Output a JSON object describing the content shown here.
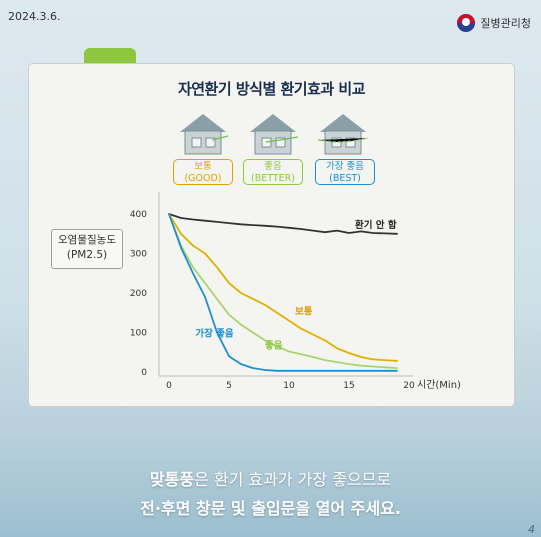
{
  "header": {
    "date": "2024.3.6.",
    "org": "질병관리청"
  },
  "card": {
    "title": "자연환기 방식별 환기효과 비교"
  },
  "badges": [
    {
      "line1": "보통",
      "line2": "(GOOD)",
      "color": "#e0a000"
    },
    {
      "line1": "좋음",
      "line2": "(BETTER)",
      "color": "#8dc63f"
    },
    {
      "line1": "가장 좋음",
      "line2": "(BEST)",
      "color": "#1e8fd0"
    }
  ],
  "pm_label": {
    "line1": "오염물질농도",
    "line2": "(PM2.5)"
  },
  "chart_data": {
    "type": "line",
    "xlabel": "시간(Min)",
    "ylabel": "",
    "xlim": [
      0,
      20
    ],
    "ylim": [
      0,
      400
    ],
    "xticks": [
      0,
      5,
      10,
      15,
      20
    ],
    "yticks": [
      0,
      100,
      200,
      300,
      400
    ],
    "grid": false,
    "series": [
      {
        "name": "환기 안 함",
        "color": "#333333",
        "x": [
          0,
          1,
          2,
          3,
          4,
          5,
          6,
          7,
          8,
          9,
          10,
          11,
          12,
          13,
          14,
          15,
          16,
          17,
          18,
          19
        ],
        "y": [
          400,
          390,
          386,
          383,
          380,
          377,
          374,
          372,
          370,
          368,
          365,
          362,
          358,
          354,
          358,
          352,
          356,
          352,
          351,
          350
        ]
      },
      {
        "name": "보통",
        "color": "#e0b000",
        "x": [
          0,
          1,
          2,
          3,
          4,
          5,
          6,
          7,
          8,
          9,
          10,
          11,
          12,
          13,
          14,
          15,
          16,
          17,
          18,
          19
        ],
        "y": [
          400,
          350,
          320,
          300,
          265,
          225,
          200,
          185,
          170,
          150,
          130,
          110,
          95,
          80,
          60,
          48,
          38,
          32,
          30,
          28
        ]
      },
      {
        "name": "좋음",
        "color": "#a8d46f",
        "x": [
          0,
          1,
          2,
          3,
          4,
          5,
          6,
          7,
          8,
          9,
          10,
          11,
          12,
          13,
          14,
          15,
          16,
          17,
          18,
          19
        ],
        "y": [
          400,
          320,
          265,
          225,
          185,
          145,
          120,
          100,
          80,
          65,
          52,
          45,
          38,
          30,
          25,
          20,
          16,
          14,
          12,
          10
        ]
      },
      {
        "name": "가장 좋음",
        "color": "#1e8fd0",
        "x": [
          0,
          1,
          2,
          3,
          4,
          5,
          6,
          7,
          8,
          9,
          10,
          11,
          12,
          13,
          14,
          15,
          16,
          17,
          18,
          19
        ],
        "y": [
          400,
          315,
          250,
          190,
          100,
          40,
          20,
          10,
          5,
          3,
          3,
          3,
          3,
          3,
          3,
          3,
          3,
          3,
          3,
          3
        ]
      }
    ],
    "series_labels": [
      {
        "text": "환기 안 함",
        "x": 15.5,
        "y": 365,
        "color": "#222222"
      },
      {
        "text": "보통",
        "x": 10.5,
        "y": 145,
        "color": "#d99a00"
      },
      {
        "text": "좋음",
        "x": 8.0,
        "y": 60,
        "color": "#8dc63f"
      },
      {
        "text": "가장 좋음",
        "x": 2.2,
        "y": 90,
        "color": "#1e8fd0"
      }
    ]
  },
  "footer": {
    "line1_bold": "맞통풍",
    "line1_rest": "은 환기 효과가 가장 좋으므로",
    "line2": "전·후면 창문 및 출입문을 열어 주세요.",
    "page": "4"
  }
}
